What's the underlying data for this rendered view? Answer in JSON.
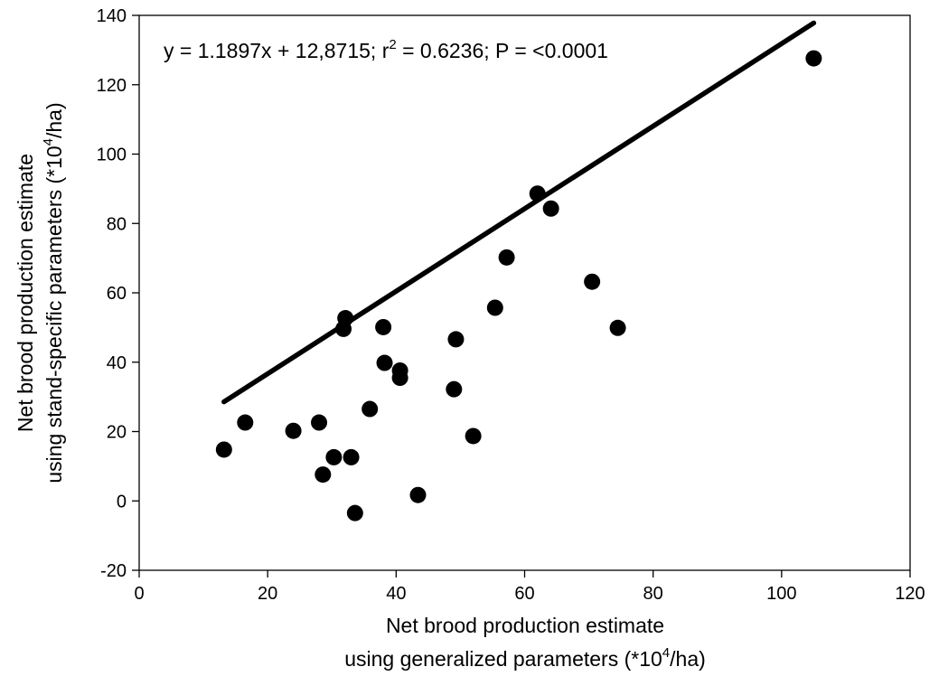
{
  "chart_data": {
    "type": "scatter",
    "annotation": {
      "pre": "y = 1.1897x + 12,8715; r",
      "sup": "2",
      "post": " = 0.6236; P = <0.0001"
    },
    "xlabel": {
      "line1": "Net brood production estimate",
      "line2_pre": "using generalized parameters (*10",
      "line2_sup": "4",
      "line2_post": "/ha)"
    },
    "ylabel": {
      "line1": "Net brood production estimate",
      "line2_pre": "using stand-specific parameters (*10",
      "line2_sup": "4",
      "line2_post": "/ha)"
    },
    "xlim": [
      0,
      120
    ],
    "ylim": [
      -20,
      140
    ],
    "xticks": [
      0,
      20,
      40,
      60,
      80,
      100,
      120
    ],
    "yticks": [
      -20,
      0,
      20,
      40,
      60,
      80,
      100,
      120,
      140
    ],
    "points": [
      {
        "x": 13.2,
        "y": 14.8
      },
      {
        "x": 16.5,
        "y": 22.6
      },
      {
        "x": 24.0,
        "y": 20.2
      },
      {
        "x": 28.0,
        "y": 22.6
      },
      {
        "x": 28.6,
        "y": 7.6
      },
      {
        "x": 30.3,
        "y": 12.6
      },
      {
        "x": 31.8,
        "y": 49.6
      },
      {
        "x": 32.1,
        "y": 52.7
      },
      {
        "x": 33.0,
        "y": 12.6
      },
      {
        "x": 33.6,
        "y": -3.5
      },
      {
        "x": 35.9,
        "y": 26.5
      },
      {
        "x": 38.0,
        "y": 50.1
      },
      {
        "x": 38.2,
        "y": 39.8
      },
      {
        "x": 40.6,
        "y": 37.6
      },
      {
        "x": 40.6,
        "y": 35.5
      },
      {
        "x": 43.4,
        "y": 1.7
      },
      {
        "x": 49.0,
        "y": 32.2
      },
      {
        "x": 49.3,
        "y": 46.6
      },
      {
        "x": 52.0,
        "y": 18.7
      },
      {
        "x": 55.4,
        "y": 55.7
      },
      {
        "x": 57.2,
        "y": 70.2
      },
      {
        "x": 62.0,
        "y": 88.6
      },
      {
        "x": 64.1,
        "y": 84.3
      },
      {
        "x": 70.5,
        "y": 63.2
      },
      {
        "x": 74.5,
        "y": 49.9
      },
      {
        "x": 105.0,
        "y": 127.6
      }
    ],
    "fit": {
      "slope": 1.1897,
      "intercept": 12.8715,
      "x_range": [
        13.2,
        105.0
      ]
    },
    "grid": false,
    "legend": "none",
    "colors": {
      "marker": "#000000",
      "line": "#000000",
      "axis": "#000000"
    }
  }
}
